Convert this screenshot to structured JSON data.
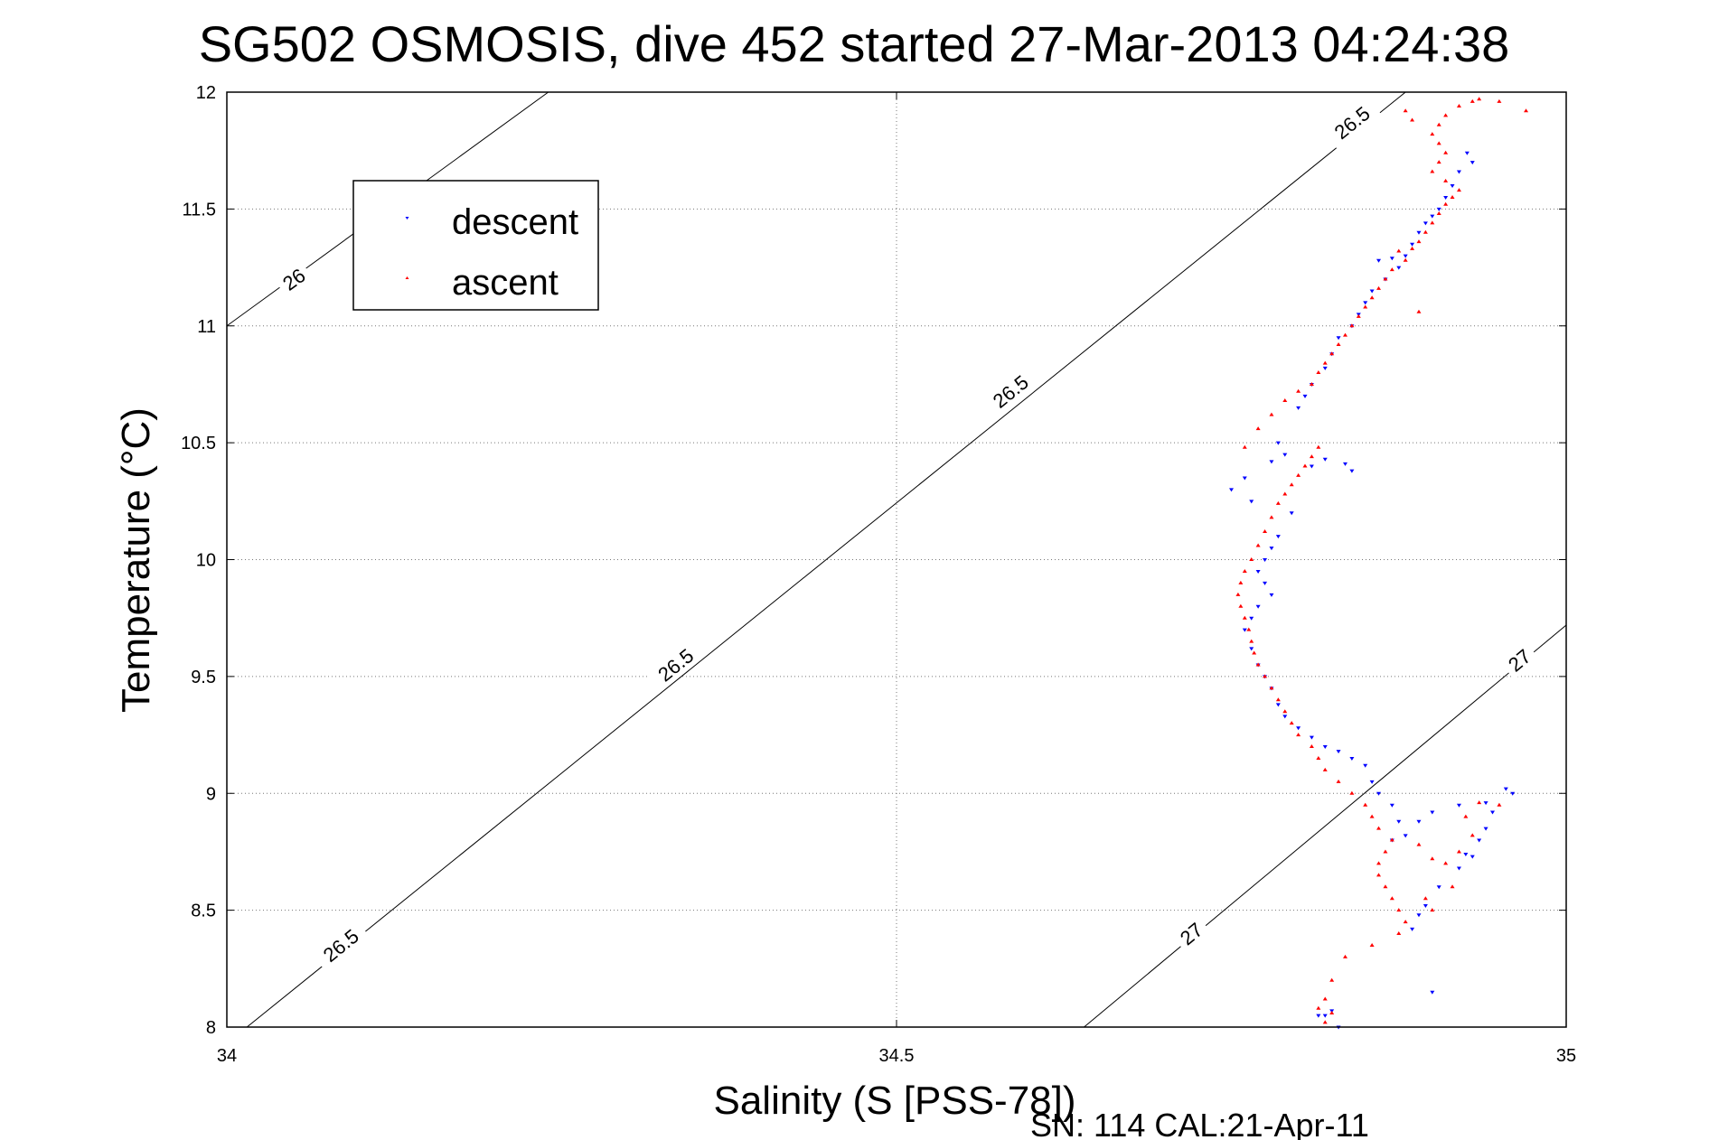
{
  "chart_data": {
    "type": "scatter",
    "title": "SG502 OSMOSIS, dive 452 started 27-Mar-2013 04:24:38",
    "xlabel": "Salinity (S [PSS-78])",
    "ylabel": "Temperature (°C)",
    "xlim": [
      34,
      35
    ],
    "ylim": [
      8,
      12
    ],
    "xticks": [
      34,
      34.5,
      35
    ],
    "xtick_labels": [
      "34",
      "34.5",
      "35"
    ],
    "yticks": [
      8,
      8.5,
      9,
      9.5,
      10,
      10.5,
      11,
      11.5,
      12
    ],
    "ytick_labels": [
      "8",
      "8.5",
      "9",
      "9.5",
      "10",
      "10.5",
      "11",
      "11.5",
      "12"
    ],
    "grid": true,
    "legend_position": "top-left",
    "footer": "SN: 114  CAL:21-Apr-11",
    "colors": {
      "descent": "#0000ff",
      "ascent": "#ff0000",
      "contour": "#000000"
    },
    "contours": [
      {
        "level": "26",
        "points": [
          [
            34.0,
            11.0
          ],
          [
            34.24,
            12.0
          ]
        ],
        "labels": [
          {
            "x": 34.05,
            "y": 11.2
          }
        ]
      },
      {
        "level": "26.5",
        "points": [
          [
            34.015,
            8.0
          ],
          [
            34.88,
            12.0
          ]
        ],
        "labels": [
          {
            "x": 34.085,
            "y": 8.35
          },
          {
            "x": 34.335,
            "y": 9.55
          },
          {
            "x": 34.585,
            "y": 10.72
          },
          {
            "x": 34.84,
            "y": 11.87
          }
        ]
      },
      {
        "level": "27",
        "points": [
          [
            34.64,
            8.0
          ],
          [
            35.0,
            9.72
          ]
        ],
        "labels": [
          {
            "x": 34.72,
            "y": 8.4
          },
          {
            "x": 34.965,
            "y": 9.57
          }
        ]
      }
    ],
    "series": [
      {
        "name": "descent",
        "marker": "triangle-down",
        "points": [
          [
            34.93,
            11.7
          ],
          [
            34.926,
            11.74
          ],
          [
            34.92,
            11.66
          ],
          [
            34.915,
            11.6
          ],
          [
            34.91,
            11.55
          ],
          [
            34.905,
            11.5
          ],
          [
            34.9,
            11.47
          ],
          [
            34.895,
            11.44
          ],
          [
            34.89,
            11.4
          ],
          [
            34.885,
            11.35
          ],
          [
            34.88,
            11.3
          ],
          [
            34.87,
            11.29
          ],
          [
            34.86,
            11.28
          ],
          [
            34.875,
            11.25
          ],
          [
            34.865,
            11.2
          ],
          [
            34.855,
            11.15
          ],
          [
            34.85,
            11.1
          ],
          [
            34.845,
            11.05
          ],
          [
            34.84,
            11.0
          ],
          [
            34.83,
            10.95
          ],
          [
            34.825,
            10.88
          ],
          [
            34.82,
            10.82
          ],
          [
            34.81,
            10.75
          ],
          [
            34.805,
            10.7
          ],
          [
            34.8,
            10.65
          ],
          [
            34.785,
            10.5
          ],
          [
            34.79,
            10.45
          ],
          [
            34.82,
            10.43
          ],
          [
            34.835,
            10.41
          ],
          [
            34.84,
            10.38
          ],
          [
            34.81,
            10.4
          ],
          [
            34.78,
            10.42
          ],
          [
            34.76,
            10.35
          ],
          [
            34.75,
            10.3
          ],
          [
            34.765,
            10.25
          ],
          [
            34.795,
            10.2
          ],
          [
            34.785,
            10.1
          ],
          [
            34.78,
            10.05
          ],
          [
            34.775,
            10.0
          ],
          [
            34.77,
            9.95
          ],
          [
            34.775,
            9.9
          ],
          [
            34.78,
            9.85
          ],
          [
            34.77,
            9.8
          ],
          [
            34.765,
            9.75
          ],
          [
            34.76,
            9.7
          ],
          [
            34.765,
            9.62
          ],
          [
            34.77,
            9.55
          ],
          [
            34.775,
            9.5
          ],
          [
            34.78,
            9.45
          ],
          [
            34.785,
            9.38
          ],
          [
            34.79,
            9.33
          ],
          [
            34.8,
            9.28
          ],
          [
            34.81,
            9.24
          ],
          [
            34.82,
            9.2
          ],
          [
            34.83,
            9.18
          ],
          [
            34.84,
            9.15
          ],
          [
            34.85,
            9.12
          ],
          [
            34.855,
            9.05
          ],
          [
            34.86,
            9.0
          ],
          [
            34.87,
            8.95
          ],
          [
            34.875,
            8.88
          ],
          [
            34.87,
            8.8
          ],
          [
            34.88,
            8.82
          ],
          [
            34.89,
            8.88
          ],
          [
            34.9,
            8.92
          ],
          [
            34.92,
            8.95
          ],
          [
            34.94,
            8.96
          ],
          [
            34.96,
            9.0
          ],
          [
            34.955,
            9.02
          ],
          [
            34.945,
            8.92
          ],
          [
            34.94,
            8.85
          ],
          [
            34.935,
            8.8
          ],
          [
            34.925,
            8.74
          ],
          [
            34.93,
            8.73
          ],
          [
            34.92,
            8.68
          ],
          [
            34.905,
            8.6
          ],
          [
            34.895,
            8.52
          ],
          [
            34.89,
            8.48
          ],
          [
            34.885,
            8.42
          ],
          [
            34.9,
            8.15
          ],
          [
            34.825,
            8.07
          ],
          [
            34.82,
            8.05
          ],
          [
            34.815,
            8.05
          ],
          [
            34.83,
            8.0
          ]
        ]
      },
      {
        "name": "ascent",
        "marker": "triangle-up",
        "points": [
          [
            34.935,
            11.97
          ],
          [
            34.93,
            11.96
          ],
          [
            34.92,
            11.94
          ],
          [
            34.91,
            11.9
          ],
          [
            34.905,
            11.86
          ],
          [
            34.9,
            11.82
          ],
          [
            34.905,
            11.78
          ],
          [
            34.91,
            11.74
          ],
          [
            34.905,
            11.7
          ],
          [
            34.9,
            11.66
          ],
          [
            34.91,
            11.62
          ],
          [
            34.92,
            11.58
          ],
          [
            34.915,
            11.55
          ],
          [
            34.91,
            11.52
          ],
          [
            34.905,
            11.48
          ],
          [
            34.9,
            11.44
          ],
          [
            34.895,
            11.4
          ],
          [
            34.89,
            11.36
          ],
          [
            34.885,
            11.33
          ],
          [
            34.875,
            11.32
          ],
          [
            34.88,
            11.28
          ],
          [
            34.87,
            11.24
          ],
          [
            34.865,
            11.2
          ],
          [
            34.86,
            11.16
          ],
          [
            34.855,
            11.12
          ],
          [
            34.85,
            11.08
          ],
          [
            34.845,
            11.04
          ],
          [
            34.84,
            11.0
          ],
          [
            34.835,
            10.96
          ],
          [
            34.83,
            10.92
          ],
          [
            34.825,
            10.88
          ],
          [
            34.82,
            10.84
          ],
          [
            34.815,
            10.8
          ],
          [
            34.81,
            10.75
          ],
          [
            34.8,
            10.72
          ],
          [
            34.79,
            10.68
          ],
          [
            34.78,
            10.62
          ],
          [
            34.77,
            10.56
          ],
          [
            34.76,
            10.48
          ],
          [
            34.815,
            10.48
          ],
          [
            34.81,
            10.44
          ],
          [
            34.805,
            10.4
          ],
          [
            34.8,
            10.36
          ],
          [
            34.795,
            10.32
          ],
          [
            34.79,
            10.28
          ],
          [
            34.785,
            10.24
          ],
          [
            34.78,
            10.18
          ],
          [
            34.775,
            10.12
          ],
          [
            34.77,
            10.06
          ],
          [
            34.765,
            10.0
          ],
          [
            34.76,
            9.95
          ],
          [
            34.757,
            9.9
          ],
          [
            34.755,
            9.85
          ],
          [
            34.757,
            9.8
          ],
          [
            34.76,
            9.75
          ],
          [
            34.763,
            9.7
          ],
          [
            34.765,
            9.65
          ],
          [
            34.767,
            9.6
          ],
          [
            34.77,
            9.55
          ],
          [
            34.775,
            9.5
          ],
          [
            34.78,
            9.45
          ],
          [
            34.785,
            9.4
          ],
          [
            34.79,
            9.35
          ],
          [
            34.795,
            9.3
          ],
          [
            34.8,
            9.25
          ],
          [
            34.81,
            9.2
          ],
          [
            34.815,
            9.15
          ],
          [
            34.82,
            9.1
          ],
          [
            34.83,
            9.05
          ],
          [
            34.84,
            9.0
          ],
          [
            34.85,
            8.95
          ],
          [
            34.855,
            8.9
          ],
          [
            34.86,
            8.85
          ],
          [
            34.87,
            8.8
          ],
          [
            34.865,
            8.75
          ],
          [
            34.86,
            8.7
          ],
          [
            34.86,
            8.65
          ],
          [
            34.865,
            8.6
          ],
          [
            34.87,
            8.55
          ],
          [
            34.875,
            8.5
          ],
          [
            34.88,
            8.45
          ],
          [
            34.89,
            8.78
          ],
          [
            34.9,
            8.72
          ],
          [
            34.91,
            8.7
          ],
          [
            34.92,
            8.75
          ],
          [
            34.93,
            8.82
          ],
          [
            34.925,
            8.9
          ],
          [
            34.935,
            8.96
          ],
          [
            34.95,
            8.95
          ],
          [
            34.915,
            8.6
          ],
          [
            34.9,
            8.5
          ],
          [
            34.895,
            8.55
          ],
          [
            34.875,
            8.4
          ],
          [
            34.855,
            8.35
          ],
          [
            34.835,
            8.3
          ],
          [
            34.825,
            8.2
          ],
          [
            34.82,
            8.12
          ],
          [
            34.815,
            8.08
          ],
          [
            34.825,
            8.06
          ],
          [
            34.82,
            8.02
          ],
          [
            34.97,
            11.92
          ],
          [
            34.95,
            11.96
          ],
          [
            34.88,
            11.92
          ],
          [
            34.885,
            11.88
          ],
          [
            34.89,
            11.06
          ]
        ]
      }
    ]
  }
}
